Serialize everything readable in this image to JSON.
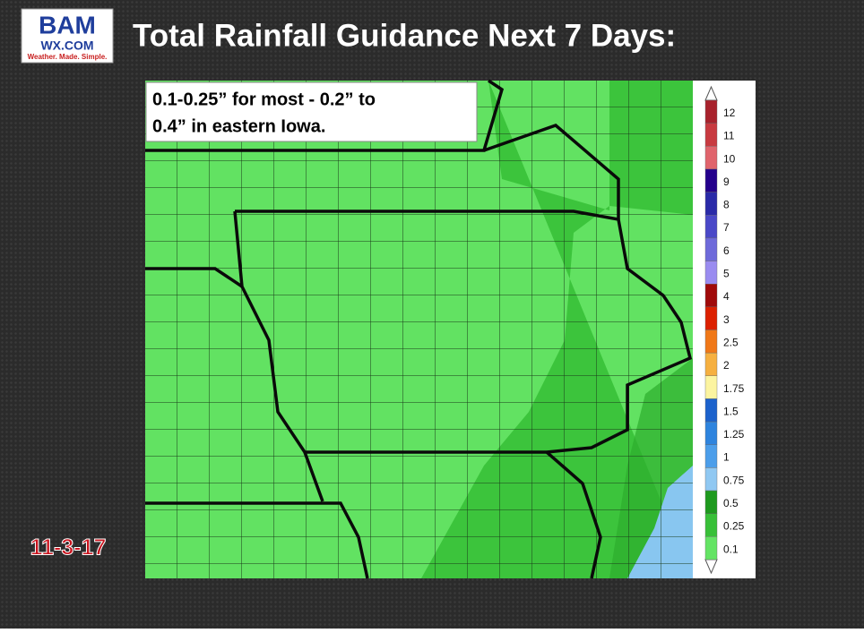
{
  "logo": {
    "brand": "BAM",
    "site": "WX.COM",
    "tagline": "Weather. Made. Simple."
  },
  "title": "Total Rainfall Guidance Next 7 Days:",
  "annotation": {
    "lines": [
      "0.1-0.25” for most - 0.2” to",
      "0.4” in eastern Iowa."
    ]
  },
  "date": "11-3-17",
  "legend": {
    "items": [
      {
        "label": "12",
        "color": "#a8222c"
      },
      {
        "label": "11",
        "color": "#c83a40"
      },
      {
        "label": "10",
        "color": "#e0646c"
      },
      {
        "label": "9",
        "color": "#24008c"
      },
      {
        "label": "8",
        "color": "#2a2aa8"
      },
      {
        "label": "7",
        "color": "#4a48c8"
      },
      {
        "label": "6",
        "color": "#6e6ada"
      },
      {
        "label": "5",
        "color": "#9a8cf0"
      },
      {
        "label": "4",
        "color": "#a00a0a"
      },
      {
        "label": "3",
        "color": "#dc2000"
      },
      {
        "label": "2.5",
        "color": "#f07818"
      },
      {
        "label": "2",
        "color": "#f6b040"
      },
      {
        "label": "1.75",
        "color": "#fcf4a0"
      },
      {
        "label": "1.5",
        "color": "#1c62cc"
      },
      {
        "label": "1.25",
        "color": "#2e84de"
      },
      {
        "label": "1",
        "color": "#4c9eea"
      },
      {
        "label": "0.75",
        "color": "#90c8f2"
      },
      {
        "label": "0.5",
        "color": "#1e9a1e"
      },
      {
        "label": "0.25",
        "color": "#38c038"
      },
      {
        "label": "0.1",
        "color": "#64e464"
      }
    ]
  }
}
